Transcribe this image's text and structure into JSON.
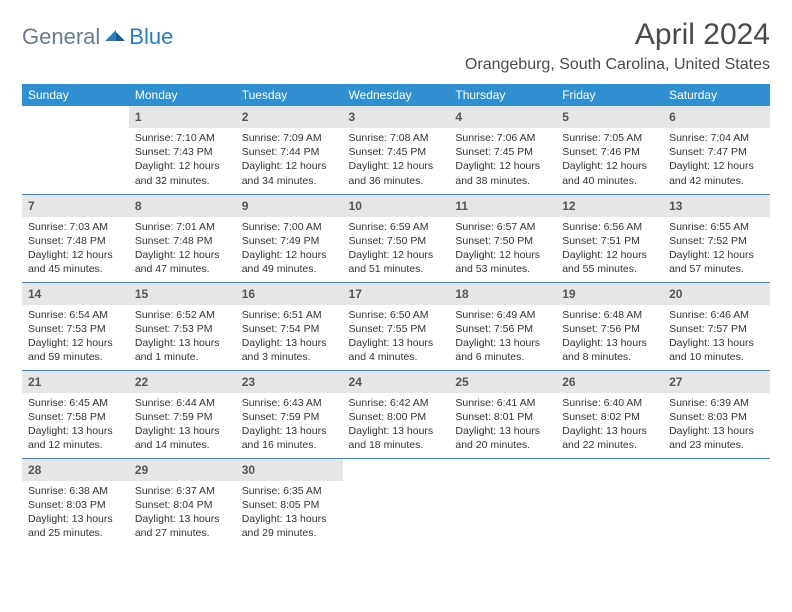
{
  "logo": {
    "word1": "General",
    "word2": "Blue"
  },
  "title": "April 2024",
  "location": "Orangeburg, South Carolina, United States",
  "colors": {
    "header_bg": "#2f8fd0",
    "header_fg": "#ffffff",
    "daynum_bg": "#e6e6e6",
    "rule": "#2f8fd0",
    "logo_gray": "#6b7b8c",
    "logo_blue": "#2b7bbf",
    "text": "#333333"
  },
  "weekdays": [
    "Sunday",
    "Monday",
    "Tuesday",
    "Wednesday",
    "Thursday",
    "Friday",
    "Saturday"
  ],
  "weeks": [
    [
      {
        "n": "",
        "sr": "",
        "ss": "",
        "dl": ""
      },
      {
        "n": "1",
        "sr": "Sunrise: 7:10 AM",
        "ss": "Sunset: 7:43 PM",
        "dl": "Daylight: 12 hours and 32 minutes."
      },
      {
        "n": "2",
        "sr": "Sunrise: 7:09 AM",
        "ss": "Sunset: 7:44 PM",
        "dl": "Daylight: 12 hours and 34 minutes."
      },
      {
        "n": "3",
        "sr": "Sunrise: 7:08 AM",
        "ss": "Sunset: 7:45 PM",
        "dl": "Daylight: 12 hours and 36 minutes."
      },
      {
        "n": "4",
        "sr": "Sunrise: 7:06 AM",
        "ss": "Sunset: 7:45 PM",
        "dl": "Daylight: 12 hours and 38 minutes."
      },
      {
        "n": "5",
        "sr": "Sunrise: 7:05 AM",
        "ss": "Sunset: 7:46 PM",
        "dl": "Daylight: 12 hours and 40 minutes."
      },
      {
        "n": "6",
        "sr": "Sunrise: 7:04 AM",
        "ss": "Sunset: 7:47 PM",
        "dl": "Daylight: 12 hours and 42 minutes."
      }
    ],
    [
      {
        "n": "7",
        "sr": "Sunrise: 7:03 AM",
        "ss": "Sunset: 7:48 PM",
        "dl": "Daylight: 12 hours and 45 minutes."
      },
      {
        "n": "8",
        "sr": "Sunrise: 7:01 AM",
        "ss": "Sunset: 7:48 PM",
        "dl": "Daylight: 12 hours and 47 minutes."
      },
      {
        "n": "9",
        "sr": "Sunrise: 7:00 AM",
        "ss": "Sunset: 7:49 PM",
        "dl": "Daylight: 12 hours and 49 minutes."
      },
      {
        "n": "10",
        "sr": "Sunrise: 6:59 AM",
        "ss": "Sunset: 7:50 PM",
        "dl": "Daylight: 12 hours and 51 minutes."
      },
      {
        "n": "11",
        "sr": "Sunrise: 6:57 AM",
        "ss": "Sunset: 7:50 PM",
        "dl": "Daylight: 12 hours and 53 minutes."
      },
      {
        "n": "12",
        "sr": "Sunrise: 6:56 AM",
        "ss": "Sunset: 7:51 PM",
        "dl": "Daylight: 12 hours and 55 minutes."
      },
      {
        "n": "13",
        "sr": "Sunrise: 6:55 AM",
        "ss": "Sunset: 7:52 PM",
        "dl": "Daylight: 12 hours and 57 minutes."
      }
    ],
    [
      {
        "n": "14",
        "sr": "Sunrise: 6:54 AM",
        "ss": "Sunset: 7:53 PM",
        "dl": "Daylight: 12 hours and 59 minutes."
      },
      {
        "n": "15",
        "sr": "Sunrise: 6:52 AM",
        "ss": "Sunset: 7:53 PM",
        "dl": "Daylight: 13 hours and 1 minute."
      },
      {
        "n": "16",
        "sr": "Sunrise: 6:51 AM",
        "ss": "Sunset: 7:54 PM",
        "dl": "Daylight: 13 hours and 3 minutes."
      },
      {
        "n": "17",
        "sr": "Sunrise: 6:50 AM",
        "ss": "Sunset: 7:55 PM",
        "dl": "Daylight: 13 hours and 4 minutes."
      },
      {
        "n": "18",
        "sr": "Sunrise: 6:49 AM",
        "ss": "Sunset: 7:56 PM",
        "dl": "Daylight: 13 hours and 6 minutes."
      },
      {
        "n": "19",
        "sr": "Sunrise: 6:48 AM",
        "ss": "Sunset: 7:56 PM",
        "dl": "Daylight: 13 hours and 8 minutes."
      },
      {
        "n": "20",
        "sr": "Sunrise: 6:46 AM",
        "ss": "Sunset: 7:57 PM",
        "dl": "Daylight: 13 hours and 10 minutes."
      }
    ],
    [
      {
        "n": "21",
        "sr": "Sunrise: 6:45 AM",
        "ss": "Sunset: 7:58 PM",
        "dl": "Daylight: 13 hours and 12 minutes."
      },
      {
        "n": "22",
        "sr": "Sunrise: 6:44 AM",
        "ss": "Sunset: 7:59 PM",
        "dl": "Daylight: 13 hours and 14 minutes."
      },
      {
        "n": "23",
        "sr": "Sunrise: 6:43 AM",
        "ss": "Sunset: 7:59 PM",
        "dl": "Daylight: 13 hours and 16 minutes."
      },
      {
        "n": "24",
        "sr": "Sunrise: 6:42 AM",
        "ss": "Sunset: 8:00 PM",
        "dl": "Daylight: 13 hours and 18 minutes."
      },
      {
        "n": "25",
        "sr": "Sunrise: 6:41 AM",
        "ss": "Sunset: 8:01 PM",
        "dl": "Daylight: 13 hours and 20 minutes."
      },
      {
        "n": "26",
        "sr": "Sunrise: 6:40 AM",
        "ss": "Sunset: 8:02 PM",
        "dl": "Daylight: 13 hours and 22 minutes."
      },
      {
        "n": "27",
        "sr": "Sunrise: 6:39 AM",
        "ss": "Sunset: 8:03 PM",
        "dl": "Daylight: 13 hours and 23 minutes."
      }
    ],
    [
      {
        "n": "28",
        "sr": "Sunrise: 6:38 AM",
        "ss": "Sunset: 8:03 PM",
        "dl": "Daylight: 13 hours and 25 minutes."
      },
      {
        "n": "29",
        "sr": "Sunrise: 6:37 AM",
        "ss": "Sunset: 8:04 PM",
        "dl": "Daylight: 13 hours and 27 minutes."
      },
      {
        "n": "30",
        "sr": "Sunrise: 6:35 AM",
        "ss": "Sunset: 8:05 PM",
        "dl": "Daylight: 13 hours and 29 minutes."
      },
      {
        "n": "",
        "sr": "",
        "ss": "",
        "dl": ""
      },
      {
        "n": "",
        "sr": "",
        "ss": "",
        "dl": ""
      },
      {
        "n": "",
        "sr": "",
        "ss": "",
        "dl": ""
      },
      {
        "n": "",
        "sr": "",
        "ss": "",
        "dl": ""
      }
    ]
  ]
}
